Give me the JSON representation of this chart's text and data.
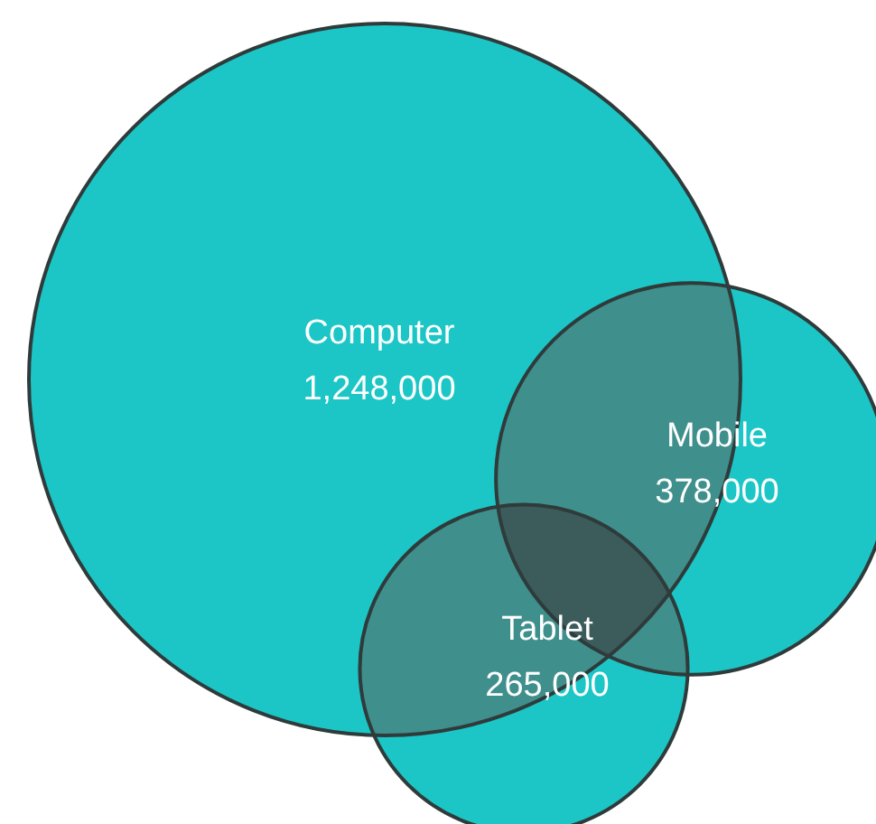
{
  "chart_data": {
    "type": "other",
    "categories": [
      "Computer",
      "Mobile",
      "Tablet"
    ],
    "values": [
      1248000,
      378000,
      265000
    ],
    "value_labels": [
      "1,248,000",
      "378,000",
      "265,000"
    ],
    "colors": [
      "#1cc6c6",
      "#1cc6c6",
      "#1cc6c6"
    ]
  }
}
